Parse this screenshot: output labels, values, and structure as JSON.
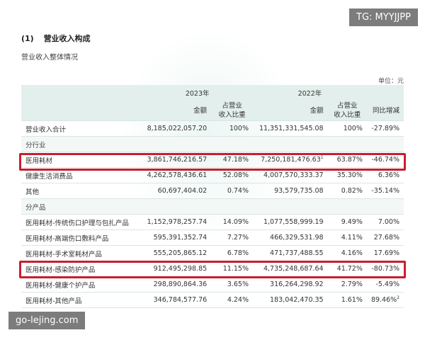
{
  "heading": {
    "num": "(1)",
    "title": "营业收入构成"
  },
  "subheading": "营业收入整体情况",
  "unit": "单位：元",
  "table": {
    "years": [
      "2023年",
      "2022年"
    ],
    "columns": {
      "amount": "金额",
      "share_line1": "占营业",
      "share_line2": "收入比重",
      "yoy": "同比增减"
    },
    "rows": [
      {
        "kind": "data",
        "label": "营业收入合计",
        "a2023": "8,185,022,057.20",
        "s2023": "100%",
        "a2022": "11,351,331,545.08",
        "s2022": "100%",
        "yoy": "-27.89%"
      },
      {
        "kind": "group",
        "label": "分行业"
      },
      {
        "kind": "data",
        "label": "医用耗材",
        "a2023": "3,861,746,216.57",
        "s2023": "47.18%",
        "a2022": "7,250,181,476.63",
        "a2022_sup": "1",
        "s2022": "63.87%",
        "yoy": "-46.74%"
      },
      {
        "kind": "data",
        "label": "健康生活消费品",
        "a2023": "4,262,578,436.61",
        "s2023": "52.08%",
        "a2022": "4,007,570,333.37",
        "s2022": "35.30%",
        "yoy": "6.36%"
      },
      {
        "kind": "data",
        "label": "其他",
        "a2023": "60,697,404.02",
        "s2023": "0.74%",
        "a2022": "93,579,735.08",
        "s2022": "0.82%",
        "yoy": "-35.14%"
      },
      {
        "kind": "group",
        "label": "分产品"
      },
      {
        "kind": "data",
        "label": "医用耗材-传统伤口护理与包扎产品",
        "a2023": "1,152,978,257.74",
        "s2023": "14.09%",
        "a2022": "1,077,558,999.19",
        "s2022": "9.49%",
        "yoy": "7.00%"
      },
      {
        "kind": "data",
        "label": "医用耗材-高端伤口敷料产品",
        "a2023": "595,391,352.74",
        "s2023": "7.27%",
        "a2022": "466,329,531.98",
        "s2022": "4.11%",
        "yoy": "27.68%"
      },
      {
        "kind": "data",
        "label": "医用耗材-手术室耗材产品",
        "a2023": "555,205,865.12",
        "s2023": "6.78%",
        "a2022": "471,737,488.55",
        "s2022": "4.16%",
        "yoy": "17.69%"
      },
      {
        "kind": "data",
        "label": "医用耗材-感染防护产品",
        "a2023": "912,495,298.85",
        "s2023": "11.15%",
        "a2022": "4,735,248,687.64",
        "s2022": "41.72%",
        "yoy": "-80.73%"
      },
      {
        "kind": "data",
        "label": "医用耗材-健康个护产品",
        "a2023": "298,890,864.36",
        "s2023": "3.65%",
        "a2022": "316,264,298.92",
        "s2022": "2.79%",
        "yoy": "-5.49%"
      },
      {
        "kind": "data",
        "label": "医用耗材-其他产品",
        "a2023": "346,784,577.76",
        "s2023": "4.24%",
        "a2022": "183,042,470.35",
        "s2022": "1.61%",
        "yoy": "89.46%",
        "yoy_sup": "2"
      }
    ]
  },
  "tags": {
    "top": "TG: MYYJJPP",
    "bottom": "go-lejing.com"
  },
  "colors": {
    "header_bg": "#e3efec",
    "highlight": "#c81e2d"
  }
}
